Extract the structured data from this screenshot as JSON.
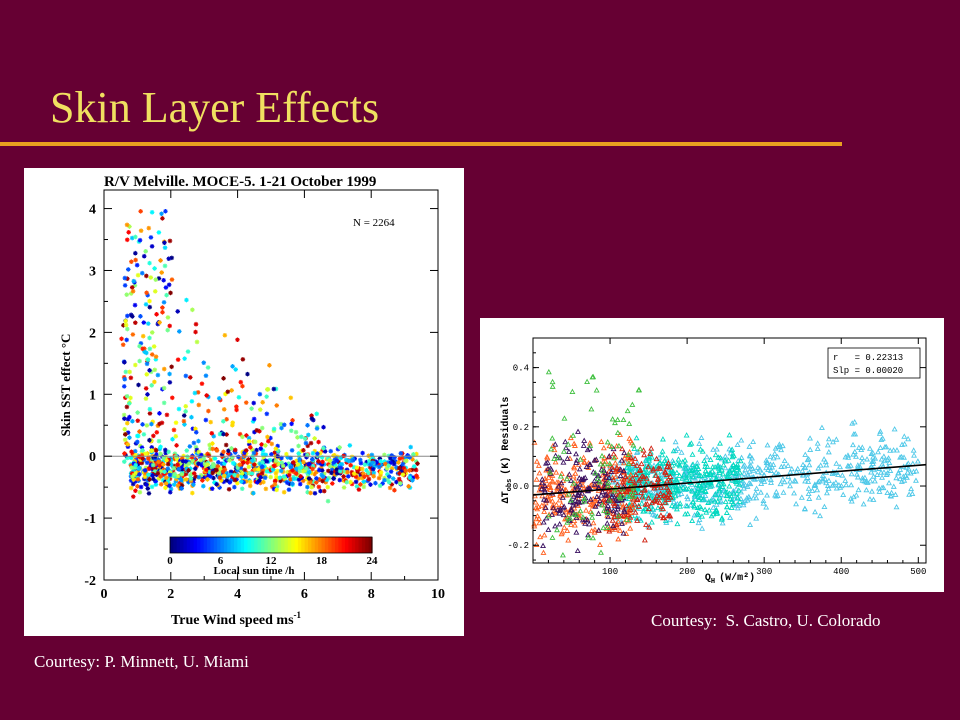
{
  "slide": {
    "title": "Skin Layer Effects",
    "credit_left": "Courtesy: P. Minnett, U. Miami",
    "credit_right": "Courtesy:  S. Castro, U. Colorado"
  },
  "chart_data": [
    {
      "type": "scatter",
      "title": "R/V Melville. MOCE-5. 1-21 October 1999",
      "xlabel": "True Wind speed ms",
      "xlabel_superscript": "-1",
      "ylabel": "Skin SST effect °C",
      "xlim": [
        0,
        10
      ],
      "ylim": [
        -2,
        4.3
      ],
      "xticks": [
        0,
        2,
        4,
        6,
        8,
        10
      ],
      "yticks": [
        -2,
        -1,
        0,
        1,
        2,
        3,
        4
      ],
      "annotation": "N = 2264",
      "reference_line_y": 0,
      "colorbar": {
        "label": "Local sun time /h",
        "min": 0,
        "max": 24,
        "ticks": [
          0,
          6,
          12,
          18,
          24
        ]
      },
      "marker": "asterisk",
      "distribution": {
        "count": 2264,
        "bulk_range_y": [
          -0.6,
          0.1
        ],
        "positive_tail_max_y": 4.0,
        "positive_tail_at_x": [
          0.5,
          3.5
        ],
        "max_x": 9.5
      }
    },
    {
      "type": "scatter",
      "xlabel": "Q",
      "xlabel_subscript": "H",
      "xlabel_units": "(W/m²)",
      "ylabel": "ΔT",
      "ylabel_subscript": "obs",
      "ylabel_units": "(K) Residuals",
      "xlim": [
        0,
        510
      ],
      "ylim": [
        -0.26,
        0.5
      ],
      "xticks": [
        100,
        200,
        300,
        400,
        500
      ],
      "yticks": [
        -0.2,
        0.0,
        0.2,
        0.4
      ],
      "ytick_labels": [
        "-0.2",
        "0.0",
        "0.2",
        "0.4"
      ],
      "legend": {
        "position": "top-right",
        "r_label": "r   = 0.22313",
        "slp_label": "Slp = 0.00020"
      },
      "fit_line": {
        "slope": 0.0002,
        "y_at_x0": -0.03
      },
      "marker": "triangle",
      "series": [
        {
          "color": "#4ec8e8",
          "x_range": [
            100,
            500
          ]
        },
        {
          "color": "#00d8c0",
          "x_range": [
            120,
            270
          ]
        },
        {
          "color": "#ff6020",
          "x_range": [
            0,
            130
          ]
        },
        {
          "color": "#d02010",
          "x_range": [
            90,
            180
          ]
        },
        {
          "color": "#3a1060",
          "x_range": [
            10,
            120
          ]
        },
        {
          "color": "#40c040",
          "x_range": [
            20,
            140
          ]
        }
      ]
    }
  ]
}
